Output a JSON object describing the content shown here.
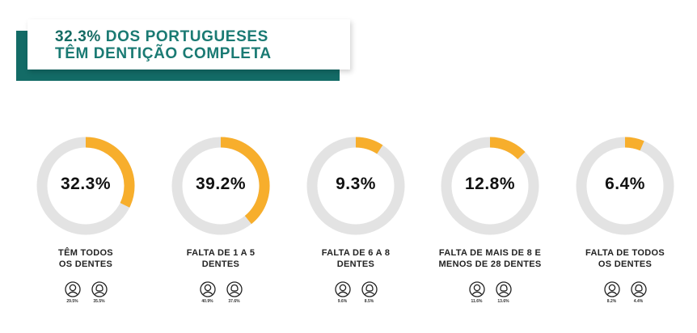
{
  "banner": {
    "title_highlight": "32.3%",
    "title_line1_rest": " DOS PORTUGUESES",
    "title_line2": "TÊM DENTIÇÃO COMPLETA"
  },
  "colors": {
    "accent": "#f7ae2c",
    "track": "#e3e3e3",
    "teal": "#136b66"
  },
  "chart_data": {
    "type": "pie",
    "title": "32.3% DOS PORTUGUESES TÊM DENTIÇÃO COMPLETA",
    "categories": [
      "TÊM TODOS OS DENTES",
      "FALTA DE 1 A 5 DENTES",
      "FALTA DE 6 A 8 DENTES",
      "FALTA DE MAIS DE 8 E MENOS DE 28 DENTES",
      "FALTA DE TODOS OS DENTES"
    ],
    "values": [
      32.3,
      39.2,
      9.3,
      12.8,
      6.4
    ],
    "unit": "%",
    "series": [
      {
        "values": [
          29.5,
          40.9,
          9.6,
          11.6,
          8.2
        ]
      },
      {
        "values": [
          35.5,
          37.6,
          8.5,
          13.6,
          4.4
        ]
      }
    ]
  },
  "metrics": [
    {
      "value_label": "32.3%",
      "label_line1": "TÊM TODOS",
      "label_line2": "OS DENTES",
      "g1_label": "29.5%",
      "g2_label": "35.5%"
    },
    {
      "value_label": "39.2%",
      "label_line1": "FALTA DE 1 A 5",
      "label_line2": "DENTES",
      "g1_label": "40.9%",
      "g2_label": "37.6%"
    },
    {
      "value_label": "9.3%",
      "label_line1": "FALTA DE 6 A 8",
      "label_line2": "DENTES",
      "g1_label": "9.6%",
      "g2_label": "8.5%"
    },
    {
      "value_label": "12.8%",
      "label_line1": "FALTA DE MAIS DE 8  E",
      "label_line2": "MENOS DE 28  DENTES",
      "g1_label": "11.6%",
      "g2_label": "13.6%"
    },
    {
      "value_label": "6.4%",
      "label_line1": "FALTA DE TODOS",
      "label_line2": "OS DENTES",
      "g1_label": "8.2%",
      "g2_label": "4.4%"
    }
  ],
  "icons": {
    "group1": "person-outline-icon-a",
    "group2": "person-outline-icon-b"
  }
}
